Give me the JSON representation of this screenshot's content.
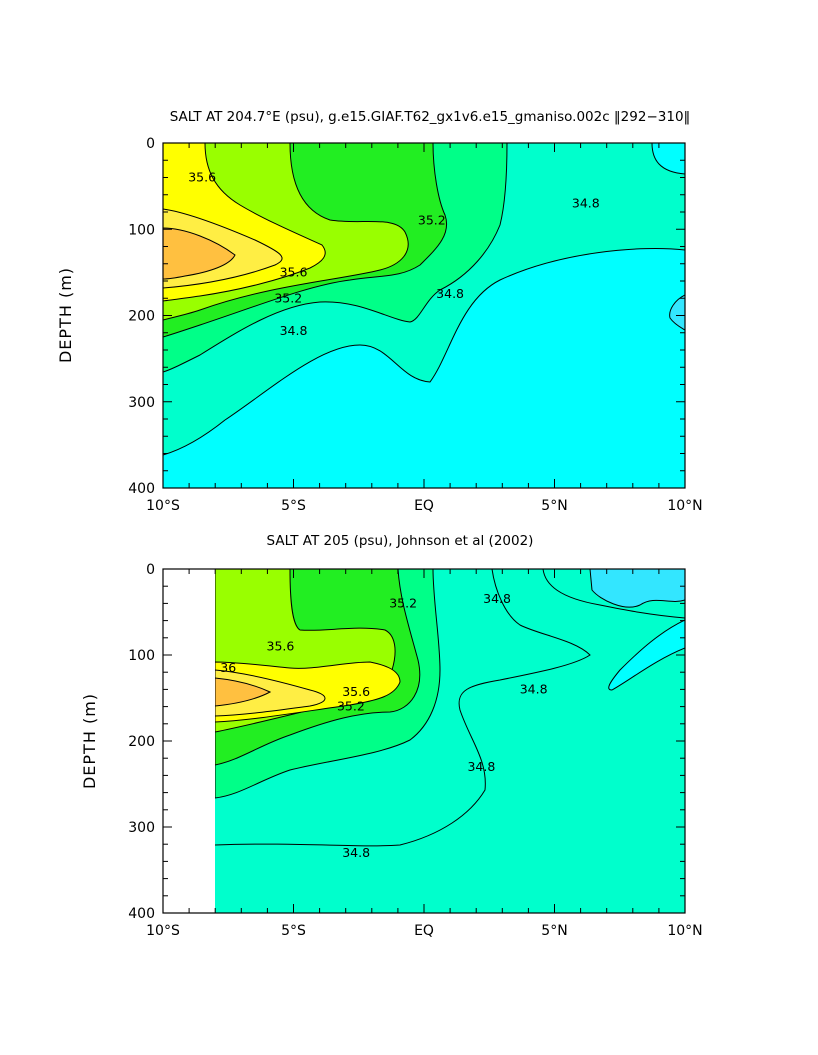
{
  "chart_data": [
    {
      "type": "contour",
      "title": "SALT AT 204.7°E (psu), g.e15.GIAF.T62_gx1v6.e15_gmaniso.002c ‖292−310‖",
      "xlabel": "",
      "ylabel": "DEPTH (m)",
      "xlim": [
        -10,
        10
      ],
      "ylim": [
        400,
        0
      ],
      "x_ticks": [
        -10,
        -5,
        0,
        5,
        10
      ],
      "x_tick_labels": [
        "10°S",
        "5°S",
        "EQ",
        "5°N",
        "10°N"
      ],
      "y_ticks": [
        0,
        100,
        200,
        300,
        400
      ],
      "y_tick_labels": [
        "0",
        "100",
        "200",
        "300",
        "400"
      ],
      "data_start_lat": -10,
      "contour_levels_psu": [
        34.6,
        34.8,
        35.0,
        35.2,
        35.4,
        35.6,
        35.8,
        36.0
      ],
      "fill_colors": [
        "#00ffff",
        "#00ffcc",
        "#00ff88",
        "#22ee22",
        "#99ff00",
        "#ffff00",
        "#ffee44",
        "#ffc040"
      ],
      "contour_labels": [
        {
          "text": "35.6",
          "lat": -8.5,
          "depth": 40
        },
        {
          "text": "35.2",
          "lat": 0.3,
          "depth": 90
        },
        {
          "text": "34.8",
          "lat": 6.2,
          "depth": 70
        },
        {
          "text": "35.6",
          "lat": -5.0,
          "depth": 150
        },
        {
          "text": "35.2",
          "lat": -5.2,
          "depth": 180
        },
        {
          "text": "34.8",
          "lat": 1.0,
          "depth": 175
        },
        {
          "text": "34.8",
          "lat": -5.0,
          "depth": 218
        }
      ]
    },
    {
      "type": "contour",
      "title": "SALT AT 205 (psu), Johnson et al (2002)",
      "xlabel": "",
      "ylabel": "DEPTH (m)",
      "xlim": [
        -10,
        10
      ],
      "ylim": [
        400,
        0
      ],
      "x_ticks": [
        -10,
        -5,
        0,
        5,
        10
      ],
      "x_tick_labels": [
        "10°S",
        "5°S",
        "EQ",
        "5°N",
        "10°N"
      ],
      "y_ticks": [
        0,
        100,
        200,
        300,
        400
      ],
      "y_tick_labels": [
        "0",
        "100",
        "200",
        "300",
        "400"
      ],
      "data_start_lat": -8,
      "contour_levels_psu": [
        34.6,
        34.8,
        35.0,
        35.2,
        35.4,
        35.6,
        35.8,
        36.0
      ],
      "fill_colors": [
        "#00ffff",
        "#00ffcc",
        "#00ff88",
        "#22ee22",
        "#99ff00",
        "#ffff00",
        "#ffee44",
        "#ffc040"
      ],
      "contour_labels": [
        {
          "text": "35.6",
          "lat": -5.5,
          "depth": 90
        },
        {
          "text": "36",
          "lat": -7.5,
          "depth": 115
        },
        {
          "text": "35.6",
          "lat": -2.6,
          "depth": 143
        },
        {
          "text": "35.2",
          "lat": -2.8,
          "depth": 160
        },
        {
          "text": "35.2",
          "lat": -0.8,
          "depth": 40
        },
        {
          "text": "34.8",
          "lat": 2.8,
          "depth": 35
        },
        {
          "text": "34.8",
          "lat": 4.2,
          "depth": 140
        },
        {
          "text": "34.8",
          "lat": 2.2,
          "depth": 230
        },
        {
          "text": "34.8",
          "lat": -2.6,
          "depth": 330
        }
      ]
    }
  ]
}
